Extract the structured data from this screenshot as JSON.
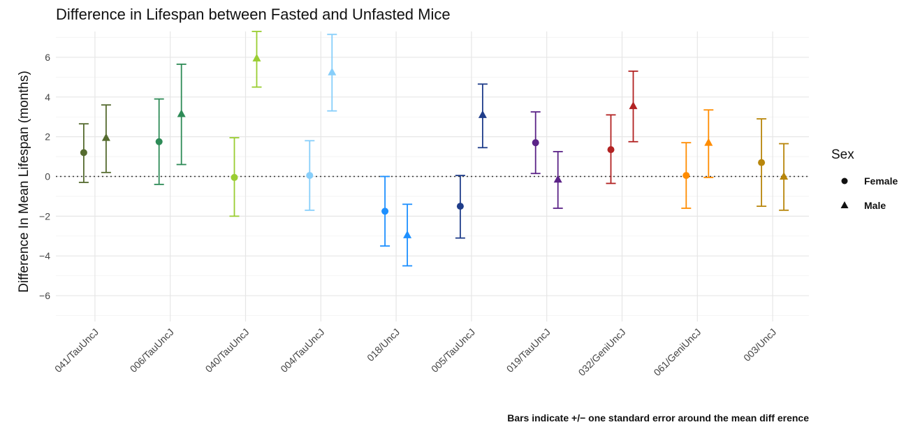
{
  "chart_data": {
    "type": "errorbar",
    "title": "Difference in Lifespan between Fasted and Unfasted Mice",
    "xlabel": "",
    "ylabel": "Difference In Mean Lifespan (months)",
    "caption": "Bars indicate +/− one standard error around the mean diff erence",
    "ylim": [
      -7.3,
      7.3
    ],
    "yticks": [
      -6,
      -4,
      -2,
      0,
      2,
      4,
      6
    ],
    "yticks_labels": [
      "−6",
      "−4",
      "−2",
      "0",
      "2",
      "4",
      "6"
    ],
    "reference_line": 0,
    "grid": true,
    "legend": {
      "title": "Sex",
      "placement": "right",
      "items": [
        {
          "label": "Female",
          "shape": "circle"
        },
        {
          "label": "Male",
          "shape": "triangle"
        }
      ]
    },
    "categories": [
      "041/TauUncJ",
      "006/TauUncJ",
      "040/TauUncJ",
      "004/TauUncJ",
      "018/UncJ",
      "005/TauUncJ",
      "019/TauUncJ",
      "032/GeniUncJ",
      "061/GeniUncJ",
      "003/UncJ"
    ],
    "colors": [
      "#556b2f",
      "#2e8b57",
      "#9acd32",
      "#87cefa",
      "#1e90ff",
      "#1f3d8a",
      "#5b2387",
      "#b22222",
      "#ff8c00",
      "#b8860b"
    ],
    "series": [
      {
        "name": "Female",
        "values": [
          1.2,
          1.75,
          -0.05,
          0.05,
          -1.75,
          -1.5,
          1.7,
          1.35,
          0.05,
          0.7
        ],
        "lower": [
          -0.3,
          -0.4,
          -2.0,
          -1.7,
          -3.5,
          -3.1,
          0.15,
          -0.35,
          -1.6,
          -1.5
        ],
        "upper": [
          2.65,
          3.9,
          1.95,
          1.8,
          0.0,
          0.05,
          3.25,
          3.1,
          1.7,
          2.9
        ]
      },
      {
        "name": "Male",
        "values": [
          1.95,
          3.15,
          5.95,
          5.25,
          -2.95,
          3.1,
          -0.15,
          3.55,
          1.7,
          0.0
        ],
        "lower": [
          0.2,
          0.6,
          4.5,
          3.3,
          -4.5,
          1.45,
          -1.6,
          1.75,
          -0.05,
          -1.7
        ],
        "upper": [
          3.6,
          5.65,
          7.3,
          7.15,
          -1.4,
          4.65,
          1.25,
          5.3,
          3.35,
          1.65
        ]
      }
    ]
  }
}
